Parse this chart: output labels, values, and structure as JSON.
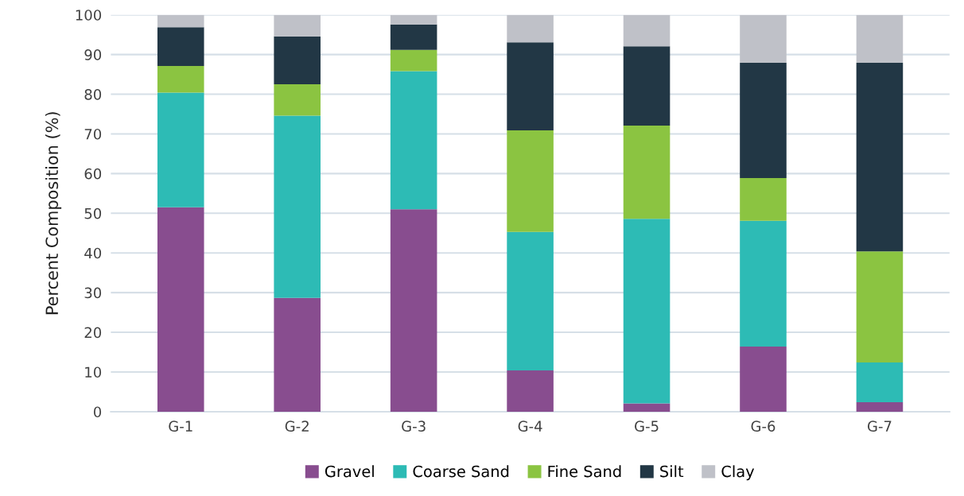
{
  "chart_data": {
    "type": "bar",
    "stacked": true,
    "ylabel": "Percent Composition (%)",
    "categories": [
      "G-1",
      "G-2",
      "G-3",
      "G-4",
      "G-5",
      "G-6",
      "G-7"
    ],
    "series": [
      {
        "name": "Gravel",
        "color": "#884d8f",
        "values": [
          51.5,
          28.7,
          51.0,
          10.4,
          2.1,
          16.4,
          2.4
        ]
      },
      {
        "name": "Coarse Sand",
        "color": "#2dbbb5",
        "values": [
          28.9,
          45.9,
          34.8,
          34.9,
          46.5,
          31.7,
          10.0
        ]
      },
      {
        "name": "Fine Sand",
        "color": "#8bc441",
        "values": [
          6.7,
          7.9,
          5.4,
          25.6,
          23.5,
          10.8,
          28.0
        ]
      },
      {
        "name": "Silt",
        "color": "#223745",
        "values": [
          9.8,
          12.1,
          6.4,
          22.2,
          20.0,
          29.0,
          47.5
        ]
      },
      {
        "name": "Clay",
        "color": "#bfc1c8",
        "values": [
          3.1,
          5.4,
          2.4,
          6.9,
          7.9,
          12.1,
          12.1
        ]
      }
    ],
    "ylim": [
      0,
      100
    ],
    "yticks": [
      0,
      10,
      20,
      30,
      40,
      50,
      60,
      70,
      80,
      90,
      100
    ],
    "grid": "y",
    "legend": "bottom"
  }
}
